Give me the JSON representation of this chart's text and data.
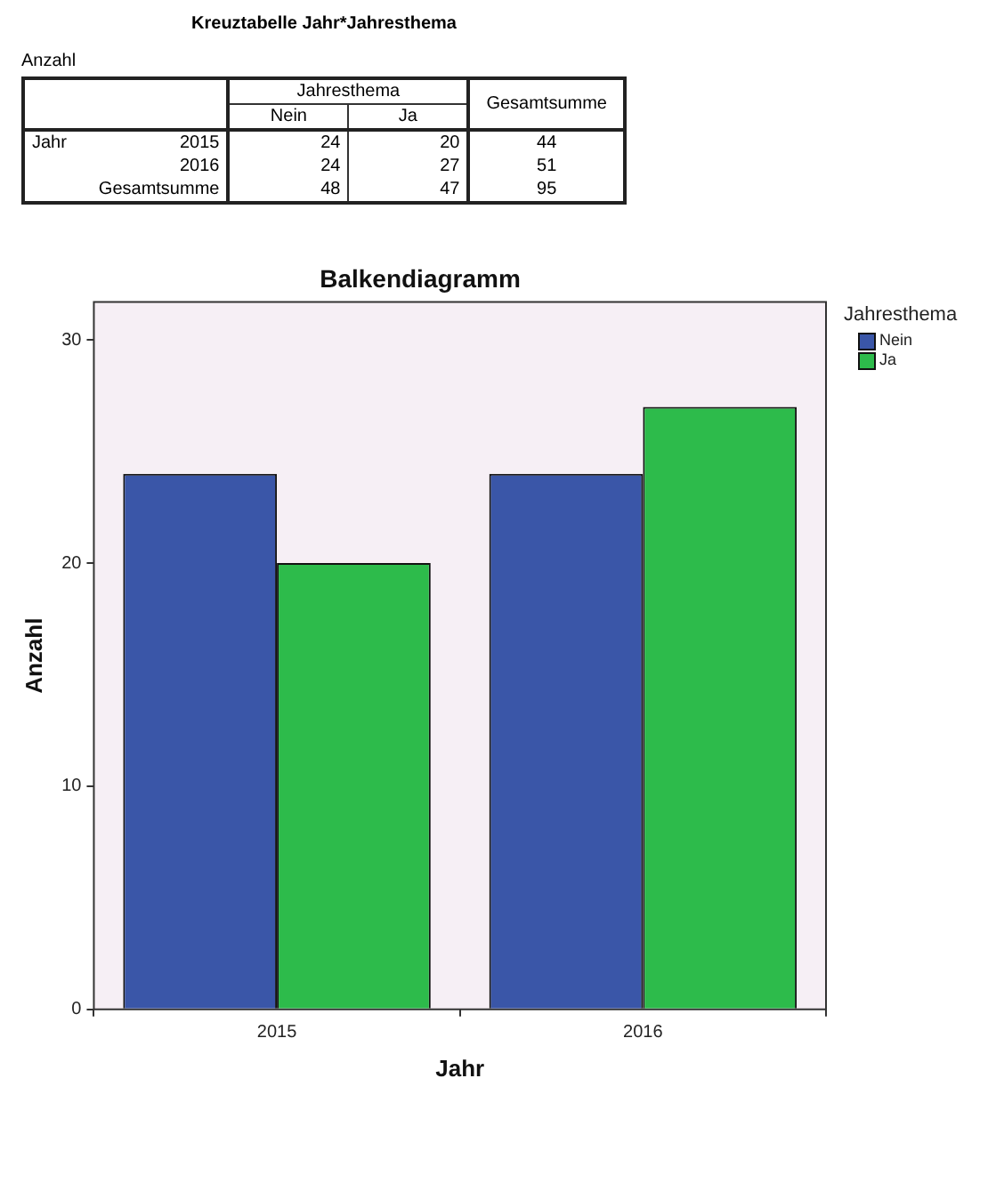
{
  "chart_data": [
    {
      "type": "heatmap",
      "data_labels": true,
      "title": "Kreuztabelle Jahr*Jahresthema",
      "subtitle": "Anzahl",
      "legend_title": "Jahresthema",
      "ylabel": "Jahr",
      "categories": [
        "Nein",
        "Ja",
        "Gesamtsumme"
      ],
      "y_categories": [
        "2015",
        "2016",
        "Gesamtsumme"
      ],
      "cells": [
        [
          24,
          20,
          44
        ],
        [
          24,
          27,
          51
        ],
        [
          48,
          47,
          95
        ]
      ]
    },
    {
      "type": "bar",
      "title": "Balkendiagramm",
      "xlabel": "Jahr",
      "ylabel": "Anzahl",
      "categories": [
        "2015",
        "2016"
      ],
      "series": [
        {
          "name": "Nein",
          "color": "#3a56a8",
          "values": [
            24,
            24
          ]
        },
        {
          "name": "Ja",
          "color": "#2dbb4b",
          "values": [
            20,
            27
          ]
        }
      ],
      "ylim": [
        0,
        31.7
      ],
      "yticks": [
        0,
        10,
        20,
        30
      ],
      "legend": "top right",
      "legend_title": "Jahresthema",
      "grid": false
    }
  ]
}
